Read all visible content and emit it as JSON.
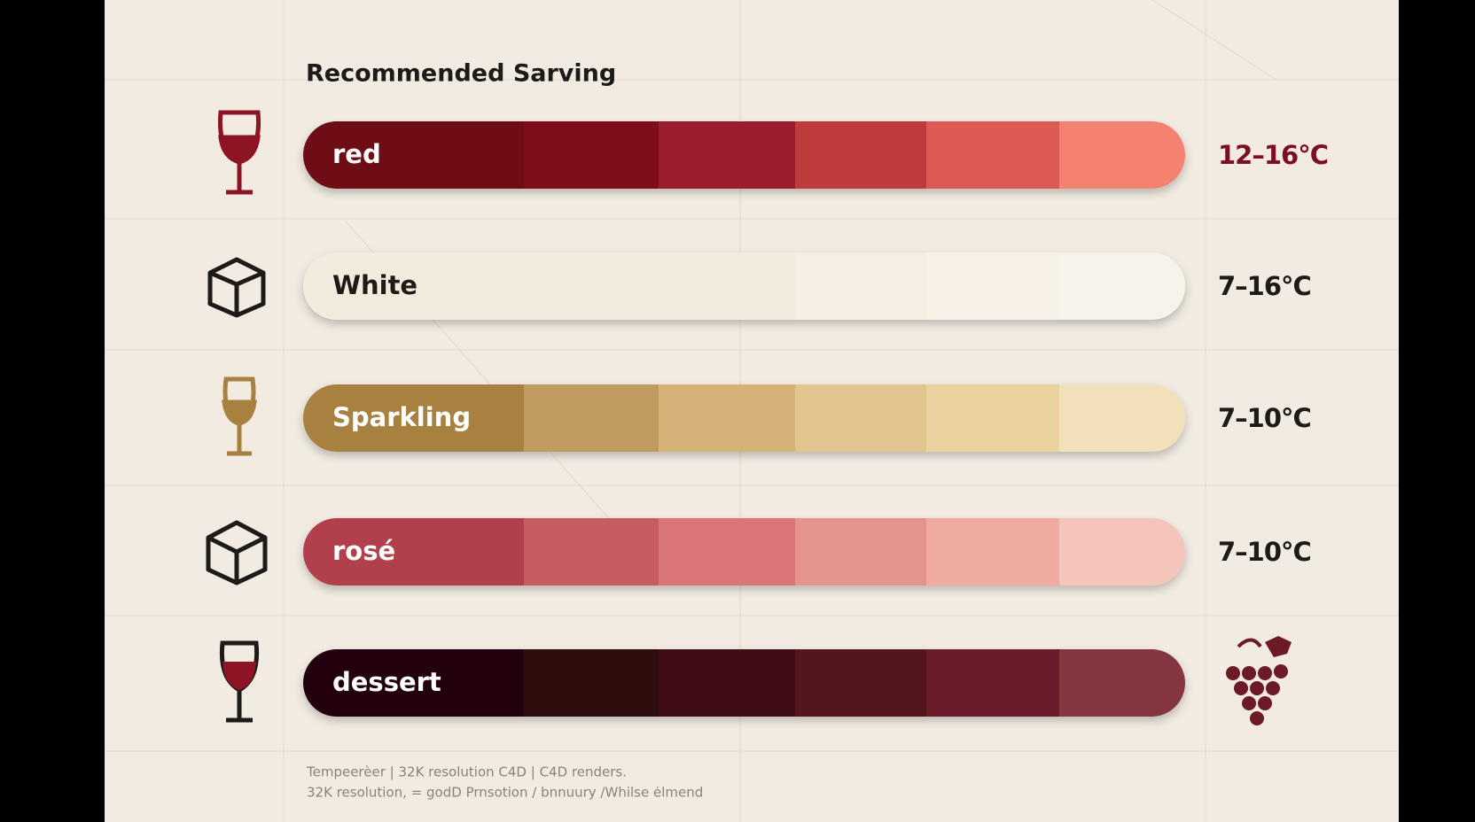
{
  "header": {
    "title": "Recommended Sarving"
  },
  "rows": [
    {
      "label": "red",
      "range": "12–16°C",
      "label_color": "#ffffff",
      "range_color": "#7a1020",
      "colors": [
        "#6e0a18",
        "#80101f",
        "#9b1f2b",
        "#bd3a3d",
        "#dc5a52",
        "#f4826f"
      ]
    },
    {
      "label": "White",
      "range": "7–16°C",
      "label_color": "#1e1a18",
      "range_color": "#1e1a18",
      "colors": [
        "#f3ebdd",
        "#f3ebdd",
        "#f3ebdd",
        "#f5eee2",
        "#f7f1e7",
        "#f8f3ea"
      ]
    },
    {
      "label": "Sparkling",
      "range": "7–10°C",
      "label_color": "#ffffff",
      "range_color": "#1e1a18",
      "colors": [
        "#a8803f",
        "#c19a5e",
        "#d4b278",
        "#e1c48e",
        "#ebd3a0",
        "#f2e0b8"
      ]
    },
    {
      "label": "rosé",
      "range": "7–10°C",
      "label_color": "#ffffff",
      "range_color": "#1e1a18",
      "colors": [
        "#b23f4c",
        "#c85a62",
        "#d8767a",
        "#e4938f",
        "#efaba1",
        "#f5c5bb"
      ]
    },
    {
      "label": "dessert",
      "label_color": "#ffffff",
      "colors": [
        "#200508",
        "#2f080e",
        "#3f0d15",
        "#53131d",
        "#6b1f29",
        "#853541"
      ]
    }
  ],
  "footer": {
    "lines": [
      "Tempeerèer | 32K resolution C4D | C4D renders.",
      "32K resolution, = godD Prnsotion / bnnuury /Whilse ėlmend"
    ]
  }
}
